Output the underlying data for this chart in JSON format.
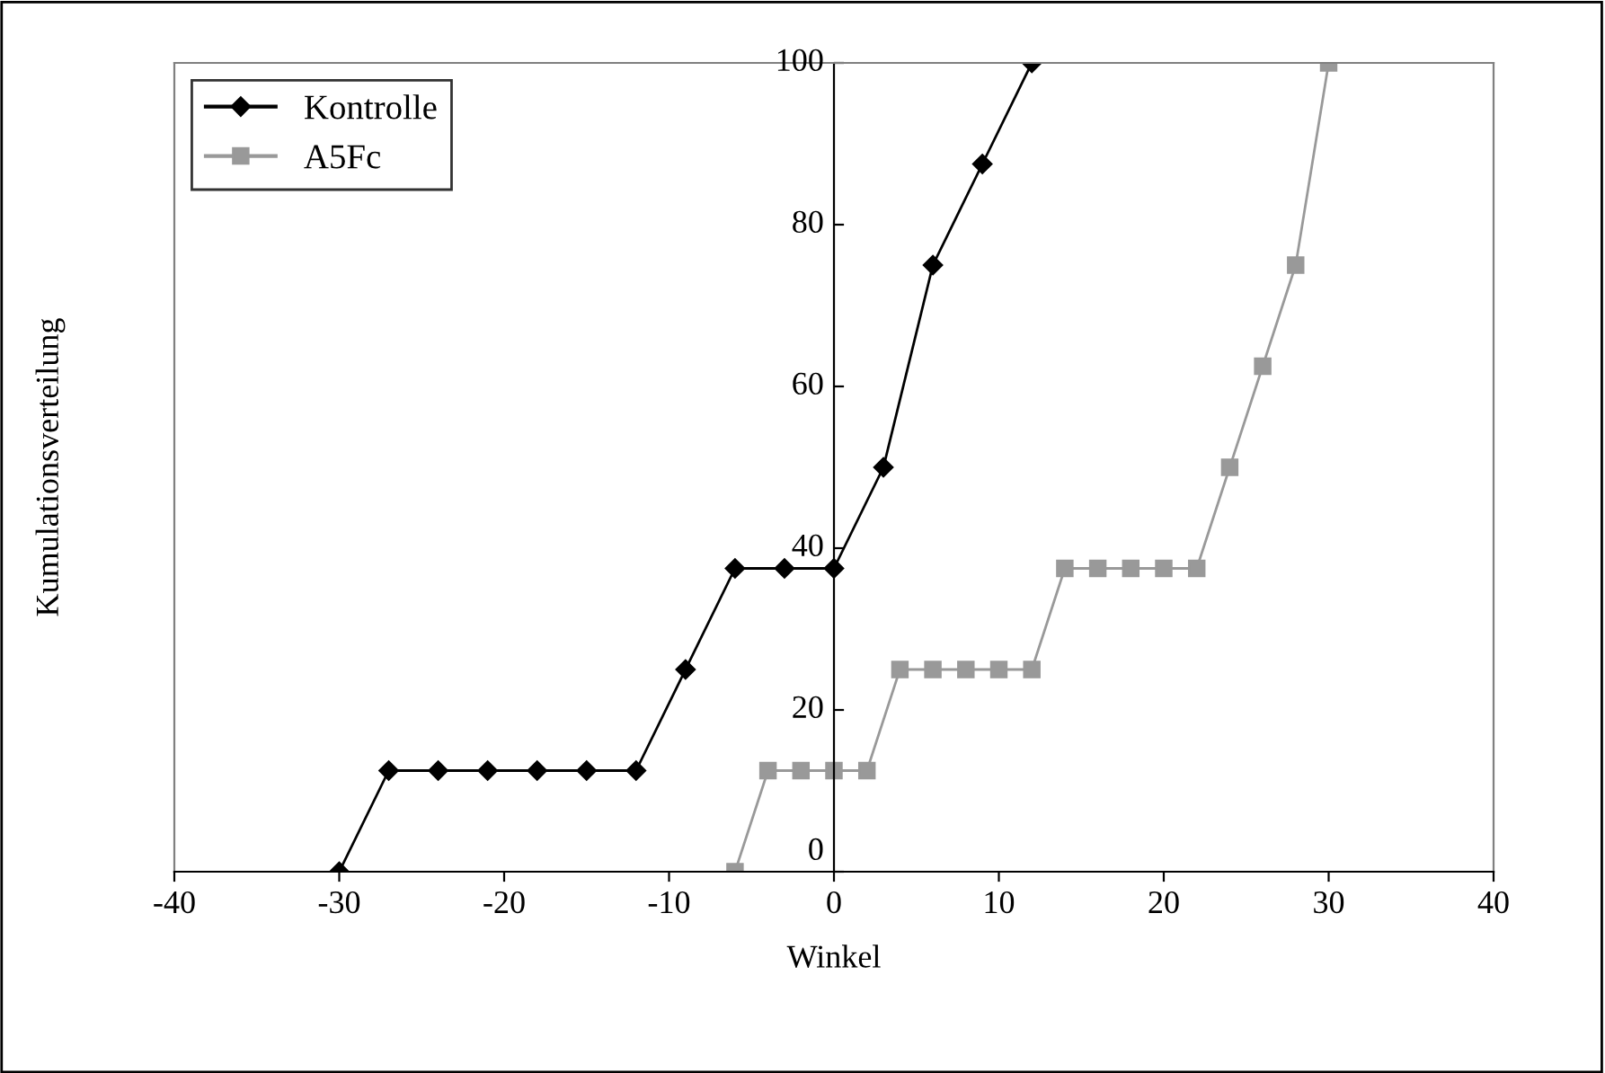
{
  "chart_data": {
    "type": "line",
    "xlabel": "Winkel",
    "ylabel": "Kumulationsverteilung",
    "xlim": [
      -40,
      40
    ],
    "xticks": [
      -40,
      -30,
      -20,
      -10,
      0,
      10,
      20,
      30,
      40
    ],
    "ylim": [
      0,
      100
    ],
    "yticks": [
      0,
      20,
      40,
      60,
      80,
      100
    ],
    "grid": false,
    "legend": "top left",
    "line_style": "solid",
    "series": [
      {
        "name": "Kontrolle",
        "color": "#000000",
        "marker": "diamond",
        "x": [
          -30,
          -27,
          -24,
          -21,
          -18,
          -15,
          -12,
          -9,
          -6,
          -3,
          0,
          3,
          6,
          9,
          12
        ],
        "values": [
          0,
          12.5,
          12.5,
          12.5,
          12.5,
          12.5,
          12.5,
          25,
          37.5,
          37.5,
          37.5,
          50,
          75,
          87.5,
          100
        ]
      },
      {
        "name": "A5Fc",
        "color": "#999999",
        "marker": "square",
        "x": [
          -6,
          -4,
          -2,
          0,
          2,
          4,
          6,
          8,
          10,
          12,
          14,
          16,
          18,
          20,
          22,
          24,
          26,
          28,
          30
        ],
        "values": [
          0,
          12.5,
          12.5,
          12.5,
          12.5,
          25,
          25,
          25,
          25,
          25,
          37.5,
          37.5,
          37.5,
          37.5,
          37.5,
          50,
          62.5,
          75,
          100
        ]
      }
    ]
  }
}
